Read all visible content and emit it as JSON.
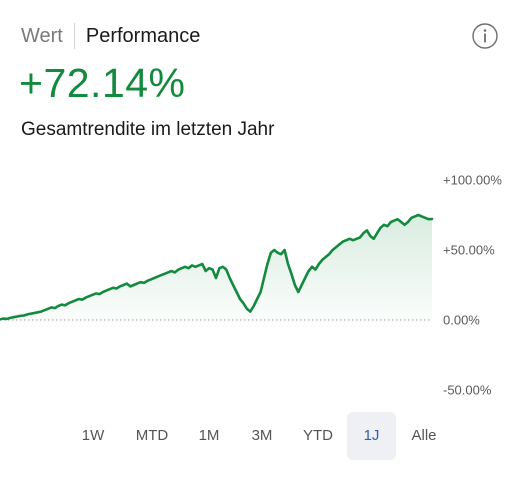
{
  "tabs": [
    {
      "label": "Wert",
      "active": false
    },
    {
      "label": "Performance",
      "active": true
    }
  ],
  "info_icon": "info-icon",
  "headline": {
    "value": "+72.14%",
    "color": "#138a3e"
  },
  "subtitle": "Gesamtrendite im letzten Jahr",
  "chart_data": {
    "type": "line",
    "title": "",
    "xlabel": "",
    "ylabel": "",
    "ylim": [
      -60,
      110
    ],
    "y_ticks": [
      "+100.00%",
      "+50.00%",
      "0.00%",
      "-50.00%"
    ],
    "baseline": 0,
    "fill": "area gradient under line",
    "line_color": "#138a3e",
    "series": [
      {
        "values": [
          0.5,
          1,
          0.8,
          1.5,
          2,
          2.5,
          3,
          3.2,
          4,
          4.5,
          5,
          5.5,
          6,
          7,
          8,
          9,
          8.5,
          10,
          11,
          10.5,
          12,
          13,
          14,
          15,
          14.5,
          16,
          17,
          18,
          19,
          18.5,
          20,
          21,
          22,
          23,
          22.5,
          24,
          25,
          26,
          24,
          25,
          26,
          27,
          26.5,
          28,
          29,
          30,
          31,
          32,
          33,
          34,
          35,
          34,
          36,
          37,
          38,
          37,
          39,
          38,
          39,
          40,
          35,
          37,
          36,
          30,
          37,
          38,
          36,
          30,
          25,
          20,
          15,
          12,
          8,
          6,
          10,
          15,
          20,
          30,
          40,
          48,
          50,
          48,
          47,
          50,
          40,
          33,
          25,
          20,
          25,
          30,
          35,
          38,
          36,
          40,
          43,
          45,
          47,
          50,
          52,
          54,
          56,
          57,
          58,
          57,
          58,
          59,
          62,
          64,
          60,
          58,
          62,
          66,
          68,
          67,
          70,
          71,
          72,
          70,
          68,
          70,
          73,
          74,
          75,
          74,
          73,
          72,
          72.14
        ]
      }
    ]
  },
  "ranges": [
    {
      "label": "1W",
      "selected": false
    },
    {
      "label": "MTD",
      "selected": false
    },
    {
      "label": "1M",
      "selected": false
    },
    {
      "label": "3M",
      "selected": false
    },
    {
      "label": "YTD",
      "selected": false
    },
    {
      "label": "1J",
      "selected": true
    },
    {
      "label": "Alle",
      "selected": false
    }
  ]
}
